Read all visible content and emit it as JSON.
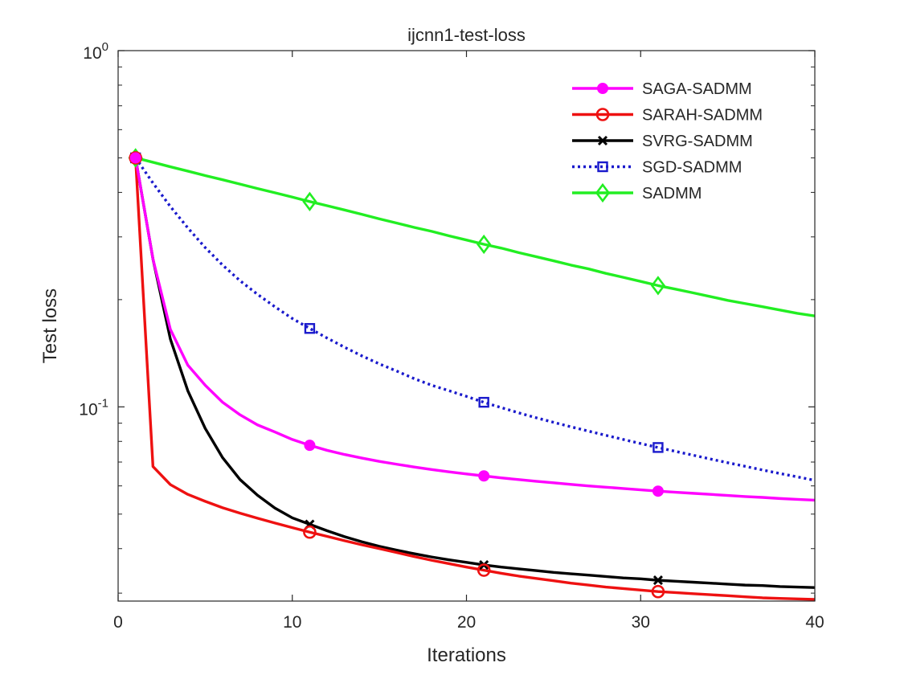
{
  "chart_data": {
    "type": "line",
    "title": "ijcnn1-test-loss",
    "xlabel": "Iterations",
    "ylabel": "Test loss",
    "xlim": [
      0,
      40
    ],
    "ylim": [
      0.0285,
      1
    ],
    "yscale": "log",
    "xticks": [
      0,
      10,
      20,
      30,
      40
    ],
    "yticks": [
      {
        "value": 0.1,
        "base": "10",
        "exp": "-1"
      },
      {
        "value": 1,
        "base": "10",
        "exp": "0"
      }
    ],
    "grid": false,
    "box": true,
    "legend_position": "top-right",
    "x": [
      1,
      2,
      3,
      4,
      5,
      6,
      7,
      8,
      9,
      10,
      11,
      12,
      13,
      14,
      15,
      16,
      17,
      18,
      19,
      20,
      21,
      22,
      23,
      24,
      25,
      26,
      27,
      28,
      29,
      30,
      31,
      32,
      33,
      34,
      35,
      36,
      37,
      38,
      39,
      40
    ],
    "marker_every": [
      1,
      11,
      21,
      31
    ],
    "series": [
      {
        "name": "SAGA-SADMM",
        "color": "#ff00ff",
        "dash": "solid",
        "marker": "filled-circle",
        "values": [
          0.5,
          0.26,
          0.165,
          0.131,
          0.115,
          0.103,
          0.095,
          0.089,
          0.085,
          0.081,
          0.078,
          0.0755,
          0.0735,
          0.0718,
          0.0703,
          0.069,
          0.0678,
          0.0667,
          0.0657,
          0.0648,
          0.064,
          0.0632,
          0.0625,
          0.0618,
          0.0612,
          0.0606,
          0.06,
          0.0595,
          0.059,
          0.0585,
          0.058,
          0.0576,
          0.0572,
          0.0568,
          0.0564,
          0.056,
          0.0557,
          0.0553,
          0.055,
          0.0547
        ]
      },
      {
        "name": "SARAH-SADMM",
        "color": "#ee1111",
        "dash": "solid",
        "marker": "open-circle",
        "values": [
          0.5,
          0.068,
          0.0605,
          0.0568,
          0.0543,
          0.0521,
          0.0503,
          0.0487,
          0.0472,
          0.0458,
          0.0445,
          0.0433,
          0.0421,
          0.041,
          0.04,
          0.039,
          0.038,
          0.0371,
          0.0363,
          0.0355,
          0.0348,
          0.0341,
          0.0335,
          0.033,
          0.0325,
          0.032,
          0.0316,
          0.0312,
          0.0309,
          0.0306,
          0.0303,
          0.0301,
          0.0299,
          0.0297,
          0.0295,
          0.0293,
          0.0291,
          0.029,
          0.0289,
          0.0288
        ]
      },
      {
        "name": "SVRG-SADMM",
        "color": "#000000",
        "dash": "solid",
        "marker": "x",
        "values": [
          0.5,
          0.26,
          0.155,
          0.111,
          0.087,
          0.072,
          0.0625,
          0.0565,
          0.052,
          0.0488,
          0.0468,
          0.0449,
          0.0432,
          0.0418,
          0.0406,
          0.0396,
          0.0387,
          0.0379,
          0.0372,
          0.0366,
          0.036,
          0.0355,
          0.0351,
          0.0347,
          0.0343,
          0.034,
          0.0337,
          0.0334,
          0.0331,
          0.0329,
          0.0326,
          0.0324,
          0.0322,
          0.032,
          0.0318,
          0.0316,
          0.0315,
          0.0313,
          0.0312,
          0.0311
        ]
      },
      {
        "name": "SGD-SADMM",
        "color": "#1a1acc",
        "dash": "dotted",
        "marker": "open-square",
        "values": [
          0.5,
          0.425,
          0.365,
          0.318,
          0.28,
          0.25,
          0.226,
          0.207,
          0.191,
          0.177,
          0.166,
          0.156,
          0.147,
          0.139,
          0.132,
          0.126,
          0.12,
          0.115,
          0.111,
          0.107,
          0.103,
          0.0995,
          0.0962,
          0.0932,
          0.0905,
          0.0879,
          0.0855,
          0.0832,
          0.081,
          0.0789,
          0.0769,
          0.075,
          0.0732,
          0.0714,
          0.0697,
          0.0681,
          0.0665,
          0.065,
          0.0636,
          0.0622
        ]
      },
      {
        "name": "SADMM",
        "color": "#22ee22",
        "dash": "solid",
        "marker": "open-diamond",
        "values": [
          0.5,
          0.486,
          0.472,
          0.459,
          0.446,
          0.434,
          0.422,
          0.41,
          0.399,
          0.388,
          0.377,
          0.367,
          0.357,
          0.347,
          0.337,
          0.328,
          0.319,
          0.311,
          0.302,
          0.294,
          0.286,
          0.279,
          0.271,
          0.264,
          0.257,
          0.25,
          0.244,
          0.237,
          0.231,
          0.225,
          0.219,
          0.214,
          0.209,
          0.204,
          0.199,
          0.195,
          0.191,
          0.187,
          0.183,
          0.18
        ]
      }
    ]
  }
}
